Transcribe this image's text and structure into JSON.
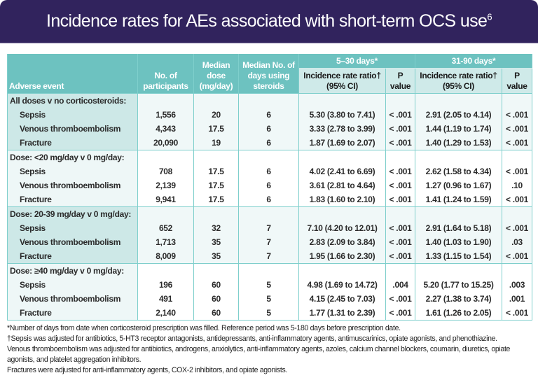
{
  "banner": {
    "title": "Incidence rates for AEs associated with short-term OCS use",
    "superscript": "6",
    "color": "#31235d"
  },
  "table": {
    "accent_color": "#6dc2c0",
    "headers": {
      "adverse_event": "Adverse event",
      "participants": "No. of participants",
      "median_dose": "Median dose (mg/day)",
      "median_days": "Median No. of days using steroids",
      "period1": "5–30 days*",
      "period2": "31-90 days*",
      "irr1": "Incidence rate ratio† (95% CI)",
      "p1": "P value",
      "irr2": "Incidence rate ratio† (95% CI)",
      "p2": "P value"
    },
    "groups": [
      {
        "label": "All doses v no corticosteroids:",
        "rows": [
          {
            "event": "Sepsis",
            "n": "1,556",
            "dose": "20",
            "days": "6",
            "irr1": "5.30 (3.80 to 7.41)",
            "p1": "< .001",
            "irr2": "2.91 (2.05 to 4.14)",
            "p2": "< .001"
          },
          {
            "event": "Venous thromboembolism",
            "n": "4,343",
            "dose": "17.5",
            "days": "6",
            "irr1": "3.33 (2.78 to 3.99)",
            "p1": "< .001",
            "irr2": "1.44 (1.19 to 1.74)",
            "p2": "< .001"
          },
          {
            "event": "Fracture",
            "n": "20,090",
            "dose": "19",
            "days": "6",
            "irr1": "1.87 (1.69 to 2.07)",
            "p1": "< .001",
            "irr2": "1.40 (1.29 to 1.53)",
            "p2": "< .001"
          }
        ]
      },
      {
        "label": "Dose: <20 mg/day v 0 mg/day:",
        "rows": [
          {
            "event": "Sepsis",
            "n": "708",
            "dose": "17.5",
            "days": "6",
            "irr1": "4.02 (2.41 to 6.69)",
            "p1": "< .001",
            "irr2": "2.62 (1.58 to 4.34)",
            "p2": "< .001"
          },
          {
            "event": "Venous thromboembolism",
            "n": "2,139",
            "dose": "17.5",
            "days": "6",
            "irr1": "3.61 (2.81 to 4.64)",
            "p1": "< .001",
            "irr2": "1.27 (0.96 to 1.67)",
            "p2": ".10"
          },
          {
            "event": "Fracture",
            "n": "9,941",
            "dose": "17.5",
            "days": "6",
            "irr1": "1.83 (1.60 to 2.10)",
            "p1": "< .001",
            "irr2": "1.41 (1.24 to 1.59)",
            "p2": "< .001"
          }
        ]
      },
      {
        "label": "Dose: 20-39 mg/day v 0 mg/day:",
        "rows": [
          {
            "event": "Sepsis",
            "n": "652",
            "dose": "32",
            "days": "7",
            "irr1": "7.10 (4.20 to 12.01)",
            "p1": "< .001",
            "irr2": "2.91 (1.64 to 5.18)",
            "p2": "< .001"
          },
          {
            "event": "Venous thromboembolism",
            "n": "1,713",
            "dose": "35",
            "days": "7",
            "irr1": "2.83 (2.09 to 3.84)",
            "p1": "< .001",
            "irr2": "1.40 (1.03 to 1.90)",
            "p2": ".03"
          },
          {
            "event": "Fracture",
            "n": "8,009",
            "dose": "35",
            "days": "7",
            "irr1": "1.95 (1.66 to 2.30)",
            "p1": "< .001",
            "irr2": "1.33 (1.15 to 1.54)",
            "p2": "< .001"
          }
        ]
      },
      {
        "label": "Dose: ≥40 mg/day v 0 mg/day:",
        "rows": [
          {
            "event": "Sepsis",
            "n": "196",
            "dose": "60",
            "days": "5",
            "irr1": "4.98 (1.69 to 14.72)",
            "p1": ".004",
            "irr2": "5.20 (1.77 to 15.25)",
            "p2": ".003"
          },
          {
            "event": "Venous thromboembolism",
            "n": "491",
            "dose": "60",
            "days": "5",
            "irr1": "4.15 (2.45 to 7.03)",
            "p1": "< .001",
            "irr2": "2.27 (1.38 to 3.74)",
            "p2": ".001"
          },
          {
            "event": "Fracture",
            "n": "2,140",
            "dose": "60",
            "days": "5",
            "irr1": "1.77 (1.31 to 2.39)",
            "p1": "< .001",
            "irr2": "1.61 (1.26 to 2.05)",
            "p2": "< .001"
          }
        ]
      }
    ]
  },
  "footnotes": [
    "*Number of days from date when corticosteroid prescription was filled. Reference period was 5-180 days before prescription date.",
    "†Sepsis was adjusted for antibiotics, 5-HT3 receptor antagonists, antidepressants, anti-inflammatory agents, antimuscarinics, opiate agonists, and phenothiazine.",
    "Venous thromboembolism was adjusted for antibiotics, androgens, anxiolytics, anti-inflammatory agents, azoles, calcium channel blockers, coumarin, diuretics, opiate agonists, and platelet aggregation inhibitors.",
    "Fractures were adjusted for anti-inflammatory agents, COX-2 inhibitors, and opiate agonists."
  ]
}
